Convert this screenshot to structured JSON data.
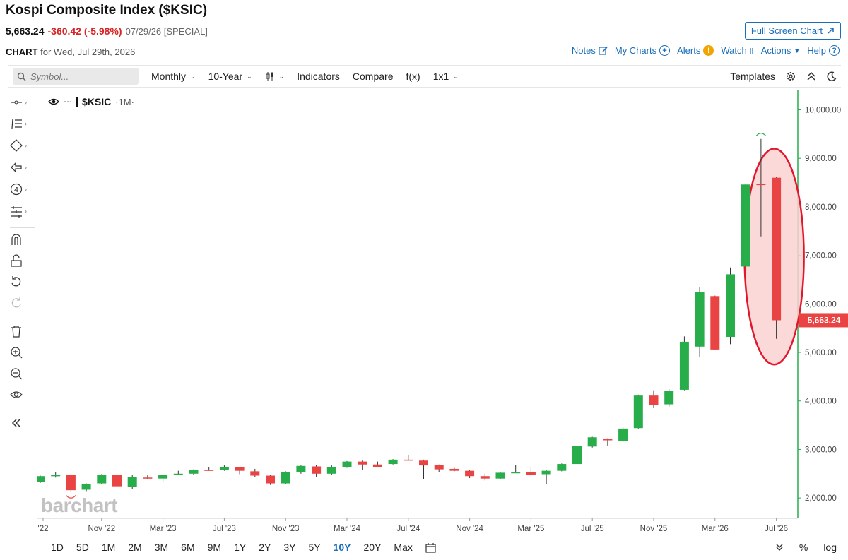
{
  "header": {
    "title": "Kospi Composite Index ($KSIC)",
    "last": "5,663.24",
    "change": "-360.42 (-5.98%)",
    "date_note": "07/29/26 [SPECIAL]",
    "full_screen_label": "Full Screen Chart"
  },
  "subheader": {
    "chart_label": "CHART",
    "for_text": "for Wed, Jul 29th, 2026",
    "links": {
      "notes": "Notes",
      "my_charts": "My Charts",
      "alerts": "Alerts",
      "watch": "Watch",
      "actions": "Actions",
      "help": "Help"
    }
  },
  "toolbar": {
    "symbol_placeholder": "Symbol...",
    "period": "Monthly",
    "range": "10-Year",
    "indicators": "Indicators",
    "compare": "Compare",
    "fx": "f(x)",
    "layout": "1x1",
    "templates": "Templates"
  },
  "legend": {
    "symbol": "$KSIC",
    "timeframe": "·1M·"
  },
  "watermark": "barchart",
  "bottom": {
    "ranges": [
      "1D",
      "5D",
      "1M",
      "2M",
      "3M",
      "6M",
      "9M",
      "1Y",
      "2Y",
      "3Y",
      "5Y",
      "10Y",
      "20Y",
      "Max"
    ],
    "active_range": "10Y",
    "percent": "%",
    "log": "log"
  },
  "colors": {
    "up": "#27ad4a",
    "down": "#ea4343",
    "accent": "#1a6db8",
    "highlight_fill": "#fcd2d2",
    "highlight_stroke": "#e3162c"
  },
  "chart_data": {
    "type": "candlestick",
    "symbol": "$KSIC",
    "interval": "Monthly",
    "y_axis_ticks": [
      "2,000.00",
      "3,000.00",
      "4,000.00",
      "5,000.00",
      "6,000.00",
      "7,000.00",
      "8,000.00",
      "9,000.00",
      "10,000.00"
    ],
    "ylim": [
      1580,
      10400
    ],
    "x_axis_ticks": [
      "'22",
      "Nov '22",
      "Mar '23",
      "Jul '23",
      "Nov '23",
      "Mar '24",
      "Jul '24",
      "Nov '24",
      "Mar '25",
      "Jul '25",
      "Nov '25",
      "Mar '26",
      "Jul '26"
    ],
    "last_price_label": "5,663.24",
    "annotation": "Jul '26 candle circled in red",
    "candles": [
      {
        "date": "Jul '22",
        "open": 2330,
        "high": 2460,
        "low": 2310,
        "close": 2450
      },
      {
        "date": "Aug '22",
        "open": 2450,
        "high": 2530,
        "low": 2420,
        "close": 2470
      },
      {
        "date": "Sep '22",
        "open": 2470,
        "high": 2480,
        "low": 2130,
        "close": 2160
      },
      {
        "date": "Oct '22",
        "open": 2170,
        "high": 2300,
        "low": 2140,
        "close": 2290
      },
      {
        "date": "Nov '22",
        "open": 2300,
        "high": 2490,
        "low": 2290,
        "close": 2470
      },
      {
        "date": "Dec '22",
        "open": 2480,
        "high": 2490,
        "low": 2230,
        "close": 2240
      },
      {
        "date": "Jan '23",
        "open": 2230,
        "high": 2480,
        "low": 2180,
        "close": 2430
      },
      {
        "date": "Feb '23",
        "open": 2420,
        "high": 2480,
        "low": 2390,
        "close": 2410
      },
      {
        "date": "Mar '23",
        "open": 2400,
        "high": 2480,
        "low": 2340,
        "close": 2470
      },
      {
        "date": "Apr '23",
        "open": 2480,
        "high": 2560,
        "low": 2470,
        "close": 2500
      },
      {
        "date": "May '23",
        "open": 2500,
        "high": 2590,
        "low": 2470,
        "close": 2580
      },
      {
        "date": "Jun '23",
        "open": 2580,
        "high": 2640,
        "low": 2560,
        "close": 2570
      },
      {
        "date": "Jul '23",
        "open": 2580,
        "high": 2670,
        "low": 2560,
        "close": 2630
      },
      {
        "date": "Aug '23",
        "open": 2630,
        "high": 2640,
        "low": 2490,
        "close": 2560
      },
      {
        "date": "Sep '23",
        "open": 2550,
        "high": 2600,
        "low": 2430,
        "close": 2460
      },
      {
        "date": "Oct '23",
        "open": 2460,
        "high": 2470,
        "low": 2270,
        "close": 2300
      },
      {
        "date": "Nov '23",
        "open": 2300,
        "high": 2550,
        "low": 2290,
        "close": 2530
      },
      {
        "date": "Dec '23",
        "open": 2530,
        "high": 2670,
        "low": 2500,
        "close": 2660
      },
      {
        "date": "Jan '24",
        "open": 2650,
        "high": 2680,
        "low": 2430,
        "close": 2500
      },
      {
        "date": "Feb '24",
        "open": 2500,
        "high": 2670,
        "low": 2480,
        "close": 2640
      },
      {
        "date": "Mar '24",
        "open": 2640,
        "high": 2760,
        "low": 2620,
        "close": 2750
      },
      {
        "date": "Apr '24",
        "open": 2750,
        "high": 2770,
        "low": 2570,
        "close": 2690
      },
      {
        "date": "May '24",
        "open": 2690,
        "high": 2750,
        "low": 2630,
        "close": 2640
      },
      {
        "date": "Jun '24",
        "open": 2700,
        "high": 2800,
        "low": 2690,
        "close": 2790
      },
      {
        "date": "Jul '24",
        "open": 2790,
        "high": 2890,
        "low": 2770,
        "close": 2770
      },
      {
        "date": "Aug '24",
        "open": 2770,
        "high": 2790,
        "low": 2390,
        "close": 2670
      },
      {
        "date": "Sep '24",
        "open": 2680,
        "high": 2690,
        "low": 2530,
        "close": 2590
      },
      {
        "date": "Oct '24",
        "open": 2600,
        "high": 2620,
        "low": 2550,
        "close": 2560
      },
      {
        "date": "Nov '24",
        "open": 2560,
        "high": 2570,
        "low": 2410,
        "close": 2450
      },
      {
        "date": "Dec '24",
        "open": 2450,
        "high": 2500,
        "low": 2360,
        "close": 2400
      },
      {
        "date": "Jan '25",
        "open": 2400,
        "high": 2540,
        "low": 2390,
        "close": 2520
      },
      {
        "date": "Feb '25",
        "open": 2520,
        "high": 2680,
        "low": 2510,
        "close": 2530
      },
      {
        "date": "Mar '25",
        "open": 2540,
        "high": 2630,
        "low": 2450,
        "close": 2480
      },
      {
        "date": "Apr '25",
        "open": 2490,
        "high": 2580,
        "low": 2290,
        "close": 2560
      },
      {
        "date": "May '25",
        "open": 2560,
        "high": 2710,
        "low": 2550,
        "close": 2700
      },
      {
        "date": "Jun '25",
        "open": 2700,
        "high": 3100,
        "low": 2690,
        "close": 3070
      },
      {
        "date": "Jul '25",
        "open": 3060,
        "high": 3260,
        "low": 3040,
        "close": 3250
      },
      {
        "date": "Aug '25",
        "open": 3210,
        "high": 3230,
        "low": 3080,
        "close": 3190
      },
      {
        "date": "Sep '25",
        "open": 3180,
        "high": 3470,
        "low": 3150,
        "close": 3430
      },
      {
        "date": "Oct '25",
        "open": 3440,
        "high": 4130,
        "low": 3430,
        "close": 4110
      },
      {
        "date": "Nov '25",
        "open": 4110,
        "high": 4220,
        "low": 3850,
        "close": 3920
      },
      {
        "date": "Dec '25",
        "open": 3930,
        "high": 4240,
        "low": 3870,
        "close": 4210
      },
      {
        "date": "Jan '26",
        "open": 4230,
        "high": 5330,
        "low": 4220,
        "close": 5220
      },
      {
        "date": "Feb '26",
        "open": 5120,
        "high": 6350,
        "low": 4900,
        "close": 6240
      },
      {
        "date": "Mar '26",
        "open": 6160,
        "high": 6170,
        "low": 5050,
        "close": 5060
      },
      {
        "date": "Apr '26",
        "open": 5320,
        "high": 6750,
        "low": 5170,
        "close": 6610
      },
      {
        "date": "May '26",
        "open": 6770,
        "high": 8480,
        "low": 6760,
        "close": 8460
      },
      {
        "date": "Jun '26",
        "open": 8470,
        "high": 9400,
        "low": 7390,
        "close": 8450
      },
      {
        "date": "Jul '26",
        "open": 8600,
        "high": 8620,
        "low": 5280,
        "close": 5663.24
      }
    ]
  }
}
